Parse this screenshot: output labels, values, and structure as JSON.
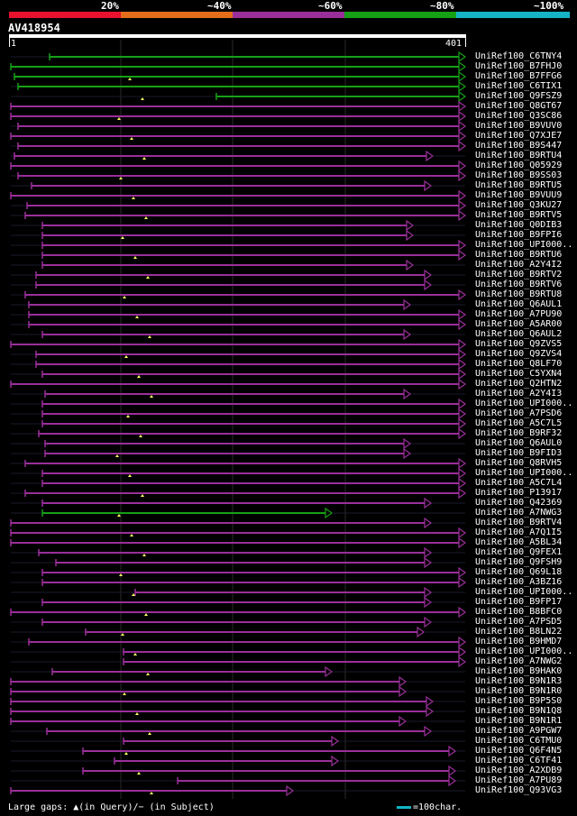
{
  "legend": {
    "labels": [
      "20%",
      "~40%",
      "~60%",
      "~80%",
      "~100%"
    ],
    "colors": [
      "#e8112e",
      "#e46d1b",
      "#9a2f9a",
      "#16a016",
      "#14b4c4"
    ]
  },
  "query": {
    "title": "AV418954",
    "start": "1",
    "end": "401"
  },
  "footer": {
    "note": "Large gaps: ▲(in Query)/− (in Subject)",
    "scale": "=100char."
  },
  "hits": [
    {
      "label": "UniRef100_C6TNY4",
      "color": "#16a016"
    },
    {
      "label": "UniRef100_B7FHJ0",
      "color": "#16a016"
    },
    {
      "label": "UniRef100_B7FFG6",
      "color": "#16a016"
    },
    {
      "label": "UniRef100_C6TIX1",
      "color": "#16a016"
    },
    {
      "label": "UniRef100_Q9FSZ9",
      "color": "#16a016"
    },
    {
      "label": "UniRef100_Q8GT67",
      "color": "#9a2f9a"
    },
    {
      "label": "UniRef100_Q3SC86",
      "color": "#9a2f9a"
    },
    {
      "label": "UniRef100_B9VUV0",
      "color": "#9a2f9a"
    },
    {
      "label": "UniRef100_Q7XJE7",
      "color": "#9a2f9a"
    },
    {
      "label": "UniRef100_B9S447",
      "color": "#9a2f9a"
    },
    {
      "label": "UniRef100_B9RTU4",
      "color": "#9a2f9a"
    },
    {
      "label": "UniRef100_Q05929",
      "color": "#9a2f9a"
    },
    {
      "label": "UniRef100_B9SS03",
      "color": "#9a2f9a"
    },
    {
      "label": "UniRef100_B9RTU5",
      "color": "#9a2f9a"
    },
    {
      "label": "UniRef100_B9VUU9",
      "color": "#9a2f9a"
    },
    {
      "label": "UniRef100_Q3KU27",
      "color": "#9a2f9a"
    },
    {
      "label": "UniRef100_B9RTV5",
      "color": "#9a2f9a"
    },
    {
      "label": "UniRef100_Q0DIB3",
      "color": "#9a2f9a"
    },
    {
      "label": "UniRef100_B9FPI6",
      "color": "#9a2f9a"
    },
    {
      "label": "UniRef100_UPI000..",
      "color": "#9a2f9a"
    },
    {
      "label": "UniRef100_B9RTU6",
      "color": "#9a2f9a"
    },
    {
      "label": "UniRef100_A2Y4I2",
      "color": "#9a2f9a"
    },
    {
      "label": "UniRef100_B9RTV2",
      "color": "#9a2f9a"
    },
    {
      "label": "UniRef100_B9RTV6",
      "color": "#9a2f9a"
    },
    {
      "label": "UniRef100_B9RTU8",
      "color": "#9a2f9a"
    },
    {
      "label": "UniRef100_Q6AUL1",
      "color": "#9a2f9a"
    },
    {
      "label": "UniRef100_A7PU90",
      "color": "#9a2f9a"
    },
    {
      "label": "UniRef100_A5AR00",
      "color": "#9a2f9a"
    },
    {
      "label": "UniRef100_Q6AUL2",
      "color": "#9a2f9a"
    },
    {
      "label": "UniRef100_Q9ZVS5",
      "color": "#9a2f9a"
    },
    {
      "label": "UniRef100_Q9ZVS4",
      "color": "#9a2f9a"
    },
    {
      "label": "UniRef100_Q8LF70",
      "color": "#9a2f9a"
    },
    {
      "label": "UniRef100_C5YXN4",
      "color": "#9a2f9a"
    },
    {
      "label": "UniRef100_Q2HTN2",
      "color": "#9a2f9a"
    },
    {
      "label": "UniRef100_A2Y4I3",
      "color": "#9a2f9a"
    },
    {
      "label": "UniRef100_UPI000..",
      "color": "#9a2f9a"
    },
    {
      "label": "UniRef100_A7PSD6",
      "color": "#9a2f9a"
    },
    {
      "label": "UniRef100_A5C7L5",
      "color": "#9a2f9a"
    },
    {
      "label": "UniRef100_B9RF32",
      "color": "#9a2f9a"
    },
    {
      "label": "UniRef100_Q6AUL0",
      "color": "#9a2f9a"
    },
    {
      "label": "UniRef100_B9FID3",
      "color": "#9a2f9a"
    },
    {
      "label": "UniRef100_Q8RVH5",
      "color": "#9a2f9a"
    },
    {
      "label": "UniRef100_UPI000..",
      "color": "#9a2f9a"
    },
    {
      "label": "UniRef100_A5C7L4",
      "color": "#9a2f9a"
    },
    {
      "label": "UniRef100_P13917",
      "color": "#9a2f9a"
    },
    {
      "label": "UniRef100_Q42369",
      "color": "#9a2f9a"
    },
    {
      "label": "UniRef100_A7NWG3",
      "color": "#16a016"
    },
    {
      "label": "UniRef100_B9RTV4",
      "color": "#9a2f9a"
    },
    {
      "label": "UniRef100_A7Q1I5",
      "color": "#9a2f9a"
    },
    {
      "label": "UniRef100_A5BL34",
      "color": "#9a2f9a"
    },
    {
      "label": "UniRef100_Q9FEX1",
      "color": "#9a2f9a"
    },
    {
      "label": "UniRef100_Q9FSH9",
      "color": "#9a2f9a"
    },
    {
      "label": "UniRef100_Q69L18",
      "color": "#9a2f9a"
    },
    {
      "label": "UniRef100_A3BZ16",
      "color": "#9a2f9a"
    },
    {
      "label": "UniRef100_UPI000..",
      "color": "#9a2f9a"
    },
    {
      "label": "UniRef100_B9FP17",
      "color": "#9a2f9a"
    },
    {
      "label": "UniRef100_B8BFC0",
      "color": "#9a2f9a"
    },
    {
      "label": "UniRef100_A7PSD5",
      "color": "#9a2f9a"
    },
    {
      "label": "UniRef100_B8LN22",
      "color": "#9a2f9a"
    },
    {
      "label": "UniRef100_B9HMD7",
      "color": "#9a2f9a"
    },
    {
      "label": "UniRef100_UPI000..",
      "color": "#9a2f9a"
    },
    {
      "label": "UniRef100_A7NWG2",
      "color": "#9a2f9a"
    },
    {
      "label": "UniRef100_B9HAK0",
      "color": "#9a2f9a"
    },
    {
      "label": "UniRef100_B9N1R3",
      "color": "#9a2f9a"
    },
    {
      "label": "UniRef100_B9N1R0",
      "color": "#9a2f9a"
    },
    {
      "label": "UniRef100_B9P5S0",
      "color": "#9a2f9a"
    },
    {
      "label": "UniRef100_B9N1Q8",
      "color": "#9a2f9a"
    },
    {
      "label": "UniRef100_B9N1R1",
      "color": "#9a2f9a"
    },
    {
      "label": "UniRef100_A9PGW7",
      "color": "#9a2f9a"
    },
    {
      "label": "UniRef100_C6TMU0",
      "color": "#9a2f9a"
    },
    {
      "label": "UniRef100_Q6F4N5",
      "color": "#9a2f9a"
    },
    {
      "label": "UniRef100_C6TF41",
      "color": "#9a2f9a"
    },
    {
      "label": "UniRef100_A2XDB9",
      "color": "#9a2f9a"
    },
    {
      "label": "UniRef100_A7PU89",
      "color": "#9a2f9a"
    },
    {
      "label": "UniRef100_Q93VG3",
      "color": "#9a2f9a"
    }
  ]
}
